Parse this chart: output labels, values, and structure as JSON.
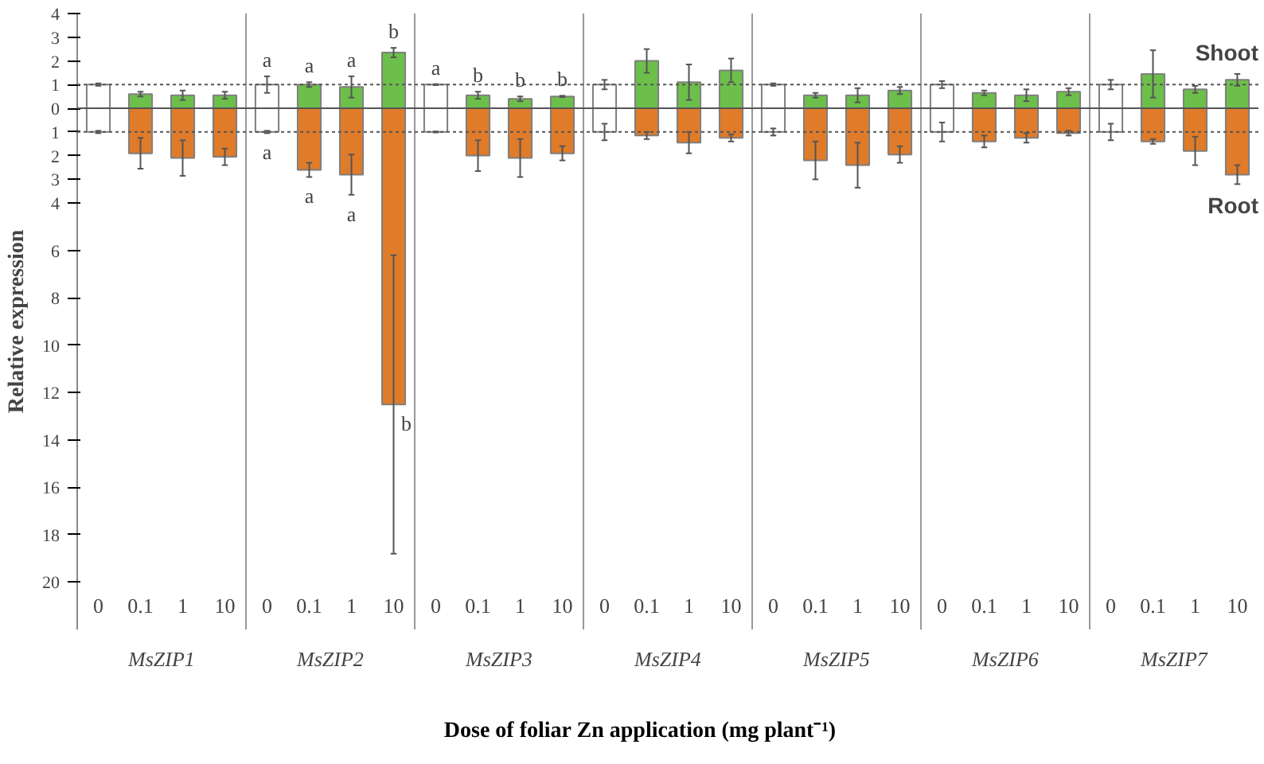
{
  "chart_data": {
    "type": "bar",
    "xlabel": "Dose of foliar Zn application (mg plant⁻¹)",
    "ylabel": "Relative expression",
    "categories": [
      "0",
      "0.1",
      "1",
      "10",
      "0",
      "0.1",
      "1",
      "10",
      "0",
      "0.1",
      "1",
      "10",
      "0",
      "0.1",
      "1",
      "10",
      "0",
      "0.1",
      "1",
      "10",
      "0",
      "0.1",
      "1",
      "10",
      "0",
      "0.1",
      "1",
      "10"
    ],
    "stacked": true,
    "series": [
      {
        "name": "Shoot",
        "colors": [
          "#ffffff",
          "#6cbf4a",
          "#6cbf4a",
          "#6cbf4a",
          "#ffffff",
          "#6cbf4a",
          "#6cbf4a",
          "#6cbf4a",
          "#ffffff",
          "#6cbf4a",
          "#6cbf4a",
          "#6cbf4a",
          "#ffffff",
          "#6cbf4a",
          "#6cbf4a",
          "#6cbf4a",
          "#ffffff",
          "#6cbf4a",
          "#6cbf4a",
          "#6cbf4a",
          "#ffffff",
          "#6cbf4a",
          "#6cbf4a",
          "#6cbf4a",
          "#ffffff",
          "#6cbf4a",
          "#6cbf4a",
          "#6cbf4a"
        ],
        "values": [
          1,
          0.6,
          0.55,
          0.55,
          1,
          1.0,
          0.9,
          2.35,
          1,
          0.55,
          0.4,
          0.5,
          1,
          2.0,
          1.1,
          1.6,
          1,
          0.55,
          0.55,
          0.75,
          1,
          0.65,
          0.55,
          0.7,
          1,
          1.45,
          0.8,
          1.2
        ],
        "errors": [
          0.05,
          0.1,
          0.2,
          0.15,
          0.35,
          0.1,
          0.45,
          0.2,
          0.02,
          0.15,
          0.1,
          0.03,
          0.2,
          0.5,
          0.75,
          0.5,
          0.05,
          0.1,
          0.3,
          0.15,
          0.15,
          0.1,
          0.25,
          0.15,
          0.2,
          1.0,
          0.15,
          0.25
        ],
        "value_labels": [
          null,
          null,
          null,
          null,
          "a",
          "a",
          "a",
          "b",
          "a",
          "b",
          "b",
          "b",
          null,
          null,
          null,
          null,
          null,
          null,
          null,
          null,
          null,
          null,
          null,
          null,
          null,
          null,
          null,
          null
        ]
      },
      {
        "name": "Root",
        "colors": [
          "#ffffff",
          "#e07b2a",
          "#e07b2a",
          "#e07b2a",
          "#ffffff",
          "#e07b2a",
          "#e07b2a",
          "#e07b2a",
          "#ffffff",
          "#e07b2a",
          "#e07b2a",
          "#e07b2a",
          "#ffffff",
          "#e07b2a",
          "#e07b2a",
          "#e07b2a",
          "#ffffff",
          "#e07b2a",
          "#e07b2a",
          "#e07b2a",
          "#ffffff",
          "#e07b2a",
          "#e07b2a",
          "#e07b2a",
          "#ffffff",
          "#e07b2a",
          "#e07b2a",
          "#e07b2a"
        ],
        "values": [
          -1,
          -1.9,
          -2.1,
          -2.05,
          -1,
          -2.6,
          -2.8,
          -12.5,
          -1,
          -2.0,
          -2.1,
          -1.9,
          -1,
          -1.15,
          -1.45,
          -1.25,
          -1,
          -2.2,
          -2.4,
          -1.95,
          -1,
          -1.4,
          -1.25,
          -1.05,
          -1,
          -1.4,
          -1.8,
          -2.8
        ],
        "errors": [
          0.05,
          0.65,
          0.75,
          0.35,
          0.05,
          0.3,
          0.85,
          6.3,
          0.02,
          0.65,
          0.8,
          0.3,
          0.35,
          0.15,
          0.45,
          0.15,
          0.15,
          0.8,
          0.95,
          0.35,
          0.4,
          0.25,
          0.2,
          0.1,
          0.35,
          0.1,
          0.6,
          0.4
        ],
        "value_labels": [
          null,
          null,
          null,
          null,
          "a",
          "a",
          "a",
          "b",
          null,
          null,
          null,
          null,
          null,
          null,
          null,
          null,
          null,
          null,
          null,
          null,
          null,
          null,
          null,
          null,
          null,
          null,
          null,
          null
        ]
      }
    ],
    "annotations": [
      "MsZIP1",
      "MsZIP2",
      "MsZIP3",
      "MsZIP4",
      "MsZIP5",
      "MsZIP6",
      "MsZIP7"
    ],
    "ylim": [
      -22,
      4
    ],
    "yticks": [
      4,
      3,
      2,
      1,
      0,
      {
        "value": -1,
        "label": "1"
      },
      {
        "value": -2,
        "label": "2"
      },
      {
        "value": -3,
        "label": "3"
      },
      {
        "value": -4,
        "label": "4"
      },
      {
        "value": -6,
        "label": "6"
      },
      {
        "value": -8,
        "label": "8"
      },
      {
        "value": -10,
        "label": "10"
      },
      {
        "value": -12,
        "label": "12"
      },
      {
        "value": -14,
        "label": "14"
      },
      {
        "value": -16,
        "label": "16"
      },
      {
        "value": -18,
        "label": "18"
      },
      {
        "value": -20,
        "label": "20"
      }
    ],
    "ref_lines": [
      {
        "axis": "y",
        "value": 0,
        "line_style": "solid"
      },
      {
        "axis": "y",
        "value": 1,
        "line_style": "dotted"
      },
      {
        "axis": "y",
        "value": -1,
        "line_style": "dotted"
      }
    ],
    "grid": false
  }
}
